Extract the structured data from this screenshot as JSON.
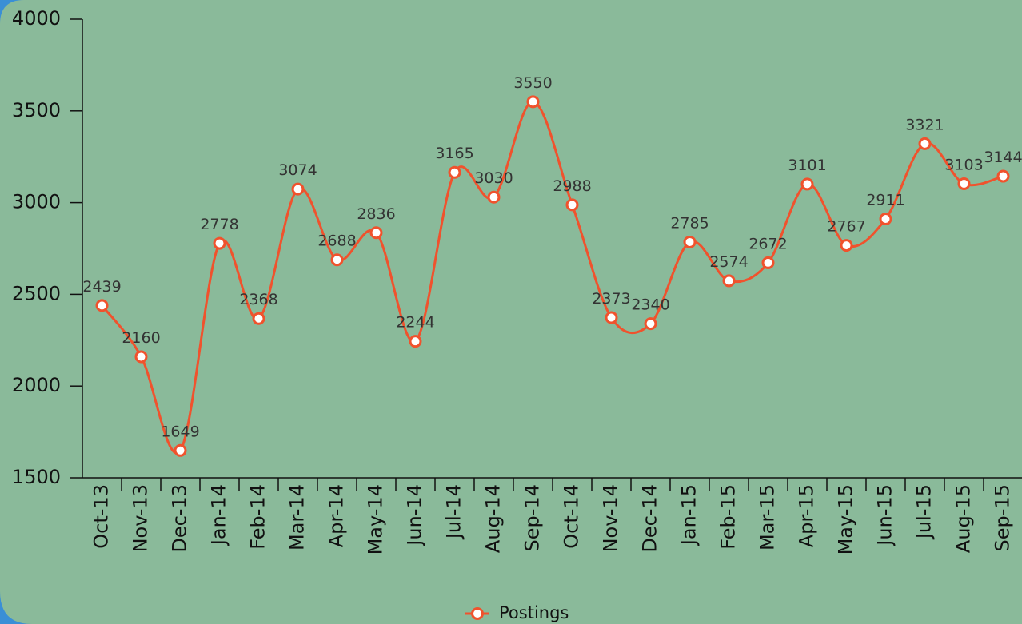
{
  "chart_data": {
    "type": "line",
    "categories": [
      "Oct-13",
      "Nov-13",
      "Dec-13",
      "Jan-14",
      "Feb-14",
      "Mar-14",
      "Apr-14",
      "May-14",
      "Jun-14",
      "Jul-14",
      "Aug-14",
      "Sep-14",
      "Oct-14",
      "Nov-14",
      "Dec-14",
      "Jan-15",
      "Feb-15",
      "Mar-15",
      "Apr-15",
      "May-15",
      "Jun-15",
      "Jul-15",
      "Aug-15",
      "Sep-15"
    ],
    "series": [
      {
        "name": "Postings",
        "color": "#f0522d",
        "values": [
          2439,
          2160,
          1649,
          2778,
          2368,
          3074,
          2688,
          2836,
          2244,
          3165,
          3030,
          3550,
          2988,
          2373,
          2340,
          2785,
          2574,
          2672,
          3101,
          2767,
          2911,
          3321,
          3103,
          3144
        ]
      }
    ],
    "ylim": [
      1500,
      4000
    ],
    "yticks": [
      1500,
      2000,
      2500,
      3000,
      3500,
      4000
    ],
    "smooth": true,
    "legend": "bottom"
  }
}
